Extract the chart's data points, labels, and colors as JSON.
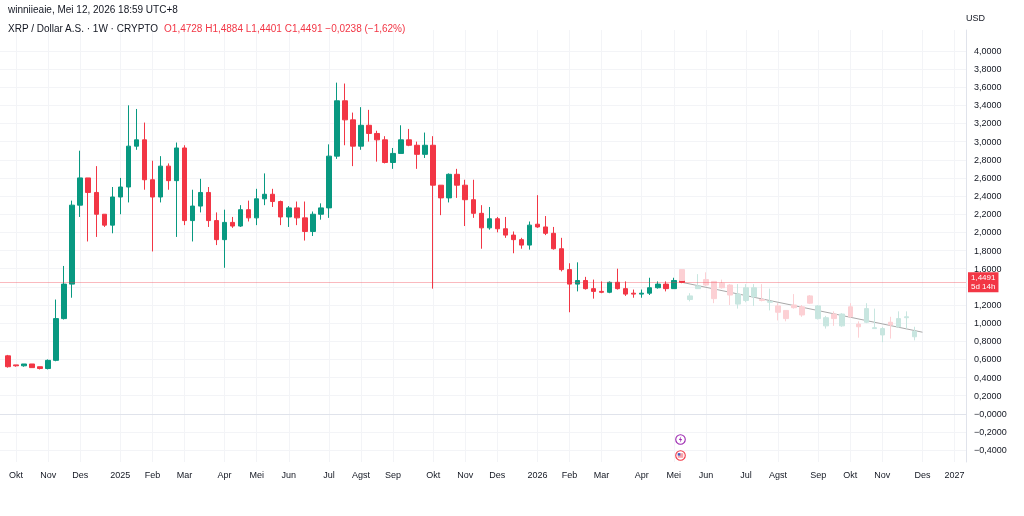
{
  "chart_data": {
    "type": "candlestick",
    "title": "XRP / Dollar A.S. · 1W · CRYPTO",
    "subtitle": "winniieaie, Mei 12, 2026 18:59 UTC+8",
    "ylabel": "USD",
    "annotations": [
      "O1,4728 H1,4884 L1,4401 C1,4491 −0,0238 (−1,62%)"
    ],
    "xlim": [
      "2024-09-23",
      "2027-01-14"
    ],
    "xticks": [
      {
        "value": "2024-10-07",
        "label": "Okt"
      },
      {
        "value": "2024-11-04",
        "label": "Nov"
      },
      {
        "value": "2024-12-02",
        "label": "Des"
      },
      {
        "value": "2025-01-06",
        "label": "2025"
      },
      {
        "value": "2025-02-03",
        "label": "Feb"
      },
      {
        "value": "2025-03-03",
        "label": "Mar"
      },
      {
        "value": "2025-04-07",
        "label": "Apr"
      },
      {
        "value": "2025-05-05",
        "label": "Mei"
      },
      {
        "value": "2025-06-02",
        "label": "Jun"
      },
      {
        "value": "2025-07-07",
        "label": "Jul"
      },
      {
        "value": "2025-08-04",
        "label": "Agst"
      },
      {
        "value": "2025-09-01",
        "label": "Sep"
      },
      {
        "value": "2025-10-06",
        "label": "Okt"
      },
      {
        "value": "2025-11-03",
        "label": "Nov"
      },
      {
        "value": "2025-12-01",
        "label": "Des"
      },
      {
        "value": "2026-01-05",
        "label": "2026"
      },
      {
        "value": "2026-02-02",
        "label": "Feb"
      },
      {
        "value": "2026-03-02",
        "label": "Mar"
      },
      {
        "value": "2026-04-06",
        "label": "Apr"
      },
      {
        "value": "2026-05-04",
        "label": "Mei"
      },
      {
        "value": "2026-06-01",
        "label": "Jun"
      },
      {
        "value": "2026-07-06",
        "label": "Jul"
      },
      {
        "value": "2026-08-03",
        "label": "Agst"
      },
      {
        "value": "2026-09-07",
        "label": "Sep"
      },
      {
        "value": "2026-10-05",
        "label": "Okt"
      },
      {
        "value": "2026-11-02",
        "label": "Nov"
      },
      {
        "value": "2026-12-07",
        "label": "Des"
      },
      {
        "value": "2027-01-04",
        "label": "2027"
      }
    ],
    "ylim": [
      -0.53,
      4.23
    ],
    "yticks": [
      {
        "value": -0.4,
        "label": "−0,4000"
      },
      {
        "value": -0.2,
        "label": "−0,2000"
      },
      {
        "value": 0,
        "label": "−0,0000"
      },
      {
        "value": 0.2,
        "label": "0,2000"
      },
      {
        "value": 0.4,
        "label": "0,4000"
      },
      {
        "value": 0.6,
        "label": "0,6000"
      },
      {
        "value": 0.8,
        "label": "0,8000"
      },
      {
        "value": 1,
        "label": "1,0000"
      },
      {
        "value": 1.2,
        "label": "1,2000"
      },
      {
        "value": 1.4,
        "label": null
      },
      {
        "value": 1.6,
        "label": "1,6000"
      },
      {
        "value": 1.8,
        "label": "1,8000"
      },
      {
        "value": 2,
        "label": "2,0000"
      },
      {
        "value": 2.2,
        "label": "2,2000"
      },
      {
        "value": 2.4,
        "label": "2,4000"
      },
      {
        "value": 2.6,
        "label": "2,6000"
      },
      {
        "value": 2.8,
        "label": "2,8000"
      },
      {
        "value": 3,
        "label": "3,0000"
      },
      {
        "value": 3.2,
        "label": "3,2000"
      },
      {
        "value": 3.4,
        "label": "3,4000"
      },
      {
        "value": 3.6,
        "label": "3,6000"
      },
      {
        "value": 3.8,
        "label": "3,8000"
      },
      {
        "value": 4,
        "label": "4,0000"
      }
    ],
    "grid": true,
    "ref_lines": [
      {
        "axis": "y",
        "value": 1.4491,
        "label": "1,4491\n5d 14h",
        "color": "#f23645"
      }
    ],
    "series": [
      {
        "x": [
          "2024-09-30",
          "2024-10-07",
          "2024-10-14",
          "2024-10-21",
          "2024-10-28",
          "2024-11-04",
          "2024-11-11",
          "2024-11-18",
          "2024-11-25",
          "2024-12-02",
          "2024-12-09",
          "2024-12-16",
          "2024-12-23",
          "2024-12-30",
          "2025-01-06",
          "2025-01-13",
          "2025-01-20",
          "2025-01-27",
          "2025-02-03",
          "2025-02-10",
          "2025-02-17",
          "2025-02-24",
          "2025-03-03",
          "2025-03-10",
          "2025-03-17",
          "2025-03-24",
          "2025-03-31",
          "2025-04-07",
          "2025-04-14",
          "2025-04-21",
          "2025-04-28",
          "2025-05-05",
          "2025-05-12",
          "2025-05-19",
          "2025-05-26",
          "2025-06-02",
          "2025-06-09",
          "2025-06-16",
          "2025-06-23",
          "2025-06-30",
          "2025-07-07",
          "2025-07-14",
          "2025-07-21",
          "2025-07-28",
          "2025-08-04",
          "2025-08-11",
          "2025-08-18",
          "2025-08-25",
          "2025-09-01",
          "2025-09-08",
          "2025-09-15",
          "2025-09-22",
          "2025-09-29",
          "2025-10-06",
          "2025-10-13",
          "2025-10-20",
          "2025-10-27",
          "2025-11-03",
          "2025-11-10",
          "2025-11-17",
          "2025-11-24",
          "2025-12-01",
          "2025-12-08",
          "2025-12-15",
          "2025-12-22",
          "2025-12-29",
          "2026-01-05",
          "2026-01-12",
          "2026-01-19",
          "2026-01-26",
          "2026-02-02",
          "2026-02-09",
          "2026-02-16",
          "2026-02-23",
          "2026-03-02",
          "2026-03-09",
          "2026-03-16",
          "2026-03-23",
          "2026-03-30",
          "2026-04-06",
          "2026-04-13",
          "2026-04-20",
          "2026-04-27",
          "2026-05-04",
          "2026-05-11"
        ],
        "ohlc": [
          [
            0.64,
            0.65,
            0.51,
            0.52
          ],
          [
            0.54,
            0.54,
            0.52,
            0.53
          ],
          [
            0.53,
            0.55,
            0.52,
            0.55
          ],
          [
            0.55,
            0.55,
            0.51,
            0.51
          ],
          [
            0.52,
            0.52,
            0.49,
            0.5
          ],
          [
            0.5,
            0.6,
            0.49,
            0.59
          ],
          [
            0.59,
            1.26,
            0.58,
            1.05
          ],
          [
            1.05,
            1.63,
            1.04,
            1.43
          ],
          [
            1.43,
            2.35,
            1.28,
            2.3
          ],
          [
            2.3,
            2.9,
            2.17,
            2.6
          ],
          [
            2.6,
            2.6,
            1.9,
            2.44
          ],
          [
            2.44,
            2.73,
            1.95,
            2.2
          ],
          [
            2.2,
            2.2,
            2.06,
            2.08
          ],
          [
            2.08,
            2.5,
            1.99,
            2.39
          ],
          [
            2.39,
            2.6,
            2.2,
            2.5
          ],
          [
            2.5,
            3.4,
            2.33,
            2.95
          ],
          [
            2.95,
            3.36,
            2.91,
            3.02
          ],
          [
            3.02,
            3.21,
            2.47,
            2.58
          ],
          [
            2.58,
            2.79,
            1.79,
            2.39
          ],
          [
            2.39,
            2.84,
            2.33,
            2.73
          ],
          [
            2.73,
            2.76,
            2.47,
            2.57
          ],
          [
            2.57,
            2.99,
            1.95,
            2.93
          ],
          [
            2.93,
            2.96,
            2.08,
            2.13
          ],
          [
            2.13,
            2.47,
            1.9,
            2.29
          ],
          [
            2.29,
            2.59,
            2.22,
            2.44
          ],
          [
            2.44,
            2.5,
            2.06,
            2.13
          ],
          [
            2.13,
            2.22,
            1.86,
            1.92
          ],
          [
            1.92,
            2.25,
            1.61,
            2.11
          ],
          [
            2.11,
            2.17,
            2.05,
            2.07
          ],
          [
            2.07,
            2.3,
            2.06,
            2.25
          ],
          [
            2.25,
            2.35,
            2.12,
            2.16
          ],
          [
            2.16,
            2.48,
            2.08,
            2.37
          ],
          [
            2.37,
            2.65,
            2.3,
            2.42
          ],
          [
            2.42,
            2.48,
            2.28,
            2.34
          ],
          [
            2.34,
            2.35,
            2.08,
            2.17
          ],
          [
            2.17,
            2.29,
            2.06,
            2.27
          ],
          [
            2.27,
            2.34,
            2.08,
            2.16
          ],
          [
            2.16,
            2.34,
            1.91,
            2.01
          ],
          [
            2.01,
            2.23,
            1.96,
            2.2
          ],
          [
            2.2,
            2.32,
            2.14,
            2.27
          ],
          [
            2.27,
            2.97,
            2.16,
            2.84
          ],
          [
            2.84,
            3.65,
            2.81,
            3.45
          ],
          [
            3.45,
            3.64,
            2.96,
            3.24
          ],
          [
            3.24,
            3.32,
            2.73,
            2.95
          ],
          [
            2.95,
            3.38,
            2.91,
            3.18
          ],
          [
            3.18,
            3.35,
            3.0,
            3.09
          ],
          [
            3.09,
            3.12,
            2.78,
            3.02
          ],
          [
            3.02,
            3.06,
            2.76,
            2.77
          ],
          [
            2.77,
            2.93,
            2.7,
            2.87
          ],
          [
            2.87,
            3.18,
            2.87,
            3.02
          ],
          [
            3.02,
            3.14,
            2.95,
            2.96
          ],
          [
            2.96,
            3.0,
            2.7,
            2.86
          ],
          [
            2.86,
            3.1,
            2.82,
            2.96
          ],
          [
            2.96,
            3.06,
            1.38,
            2.52
          ],
          [
            2.52,
            2.52,
            2.19,
            2.38
          ],
          [
            2.38,
            2.65,
            2.33,
            2.64
          ],
          [
            2.64,
            2.7,
            2.38,
            2.52
          ],
          [
            2.52,
            2.58,
            2.07,
            2.36
          ],
          [
            2.36,
            2.58,
            2.16,
            2.21
          ],
          [
            2.21,
            2.3,
            1.82,
            2.05
          ],
          [
            2.05,
            2.28,
            2.03,
            2.15
          ],
          [
            2.15,
            2.17,
            2.0,
            2.04
          ],
          [
            2.04,
            2.17,
            1.94,
            1.97
          ],
          [
            1.97,
            2.01,
            1.77,
            1.92
          ],
          [
            1.92,
            1.94,
            1.82,
            1.86
          ],
          [
            1.86,
            2.12,
            1.81,
            2.08
          ],
          [
            2.09,
            2.41,
            2.05,
            2.06
          ],
          [
            2.06,
            2.18,
            1.97,
            1.99
          ],
          [
            1.99,
            2.06,
            1.81,
            1.82
          ],
          [
            1.82,
            1.94,
            1.57,
            1.59
          ],
          [
            1.59,
            1.66,
            1.12,
            1.43
          ],
          [
            1.43,
            1.67,
            1.35,
            1.47
          ],
          [
            1.47,
            1.51,
            1.37,
            1.38
          ],
          [
            1.38,
            1.48,
            1.27,
            1.35
          ],
          [
            1.35,
            1.46,
            1.33,
            1.34
          ],
          [
            1.34,
            1.46,
            1.33,
            1.45
          ],
          [
            1.45,
            1.6,
            1.37,
            1.38
          ],
          [
            1.38,
            1.46,
            1.3,
            1.32
          ],
          [
            1.33,
            1.37,
            1.28,
            1.32
          ],
          [
            1.32,
            1.37,
            1.28,
            1.33
          ],
          [
            1.33,
            1.5,
            1.31,
            1.39
          ],
          [
            1.39,
            1.46,
            1.38,
            1.43
          ],
          [
            1.43,
            1.46,
            1.35,
            1.38
          ],
          [
            1.38,
            1.5,
            1.38,
            1.47
          ],
          [
            1.4728,
            1.4884,
            1.4401,
            1.4491
          ]
        ],
        "colors": [
          "#f23645",
          "#f23645",
          "#089981",
          "#f23645",
          "#f23645",
          "#089981",
          "#089981",
          "#089981",
          "#089981",
          "#089981",
          "#f23645",
          "#f23645",
          "#f23645",
          "#089981",
          "#089981",
          "#089981",
          "#089981",
          "#f23645",
          "#f23645",
          "#089981",
          "#f23645",
          "#089981",
          "#f23645",
          "#089981",
          "#089981",
          "#f23645",
          "#f23645",
          "#089981",
          "#f23645",
          "#089981",
          "#f23645",
          "#089981",
          "#089981",
          "#f23645",
          "#f23645",
          "#089981",
          "#f23645",
          "#f23645",
          "#089981",
          "#089981",
          "#089981",
          "#089981",
          "#f23645",
          "#f23645",
          "#089981",
          "#f23645",
          "#f23645",
          "#f23645",
          "#089981",
          "#089981",
          "#f23645",
          "#f23645",
          "#089981",
          "#f23645",
          "#f23645",
          "#089981",
          "#f23645",
          "#f23645",
          "#f23645",
          "#f23645",
          "#089981",
          "#f23645",
          "#f23645",
          "#f23645",
          "#f23645",
          "#089981",
          "#f23645",
          "#f23645",
          "#f23645",
          "#f23645",
          "#f23645",
          "#089981",
          "#f23645",
          "#f23645",
          "#f23645",
          "#089981",
          "#f23645",
          "#f23645",
          "#f23645",
          "#089981",
          "#089981",
          "#089981",
          "#f23645",
          "#089981",
          "#f23645"
        ]
      },
      {
        "x": [
          "2026-05-11",
          "2026-05-18",
          "2026-05-25",
          "2026-06-01",
          "2026-06-08",
          "2026-06-15",
          "2026-06-22",
          "2026-06-29",
          "2026-07-06",
          "2026-07-13",
          "2026-07-20",
          "2026-07-27",
          "2026-08-03",
          "2026-08-10",
          "2026-08-17",
          "2026-08-24",
          "2026-08-31",
          "2026-09-07",
          "2026-09-14",
          "2026-09-21",
          "2026-09-28",
          "2026-10-05",
          "2026-10-12",
          "2026-10-19",
          "2026-10-26",
          "2026-11-02",
          "2026-11-09",
          "2026-11-16",
          "2026-11-23",
          "2026-11-30"
        ],
        "ohlc": [
          [
            1.59,
            1.59,
            1.47,
            1.47
          ],
          [
            1.26,
            1.33,
            1.24,
            1.3
          ],
          [
            1.38,
            1.54,
            1.38,
            1.41
          ],
          [
            1.48,
            1.56,
            1.41,
            1.42
          ],
          [
            1.46,
            1.46,
            1.22,
            1.27
          ],
          [
            1.44,
            1.48,
            1.38,
            1.39
          ],
          [
            1.42,
            1.43,
            1.2,
            1.31
          ],
          [
            1.21,
            1.43,
            1.16,
            1.32
          ],
          [
            1.25,
            1.43,
            1.23,
            1.39
          ],
          [
            1.29,
            1.43,
            1.19,
            1.39
          ],
          [
            1.26,
            1.43,
            1.24,
            1.25
          ],
          [
            1.23,
            1.38,
            1.14,
            1.24
          ],
          [
            1.19,
            1.22,
            1.03,
            1.12
          ],
          [
            1.14,
            1.14,
            1.02,
            1.05
          ],
          [
            1.2,
            1.32,
            1.16,
            1.17
          ],
          [
            1.18,
            1.2,
            1.07,
            1.09
          ],
          [
            1.3,
            1.31,
            1.21,
            1.22
          ],
          [
            1.05,
            1.2,
            1.04,
            1.19
          ],
          [
            0.97,
            1.08,
            0.94,
            1.06
          ],
          [
            1.1,
            1.13,
            0.97,
            1.05
          ],
          [
            0.97,
            1.11,
            0.96,
            1.1
          ],
          [
            1.18,
            1.22,
            1.06,
            1.07
          ],
          [
            0.99,
            1.02,
            0.84,
            0.96
          ],
          [
            1.01,
            1.22,
            1.0,
            1.16
          ],
          [
            0.94,
            1.16,
            0.94,
            0.95
          ],
          [
            0.87,
            0.96,
            0.79,
            0.94
          ],
          [
            1.01,
            1.07,
            0.83,
            0.98
          ],
          [
            0.96,
            1.13,
            0.95,
            1.05
          ],
          [
            1.06,
            1.13,
            0.94,
            1.07
          ],
          [
            0.85,
            0.96,
            0.81,
            0.91
          ]
        ],
        "colors": [
          "#fcd0d4",
          "#c8e6e0",
          "#c8e6e0",
          "#fcd0d4",
          "#fcd0d4",
          "#fcd0d4",
          "#fcd0d4",
          "#c8e6e0",
          "#c8e6e0",
          "#c8e6e0",
          "#fcd0d4",
          "#c8e6e0",
          "#fcd0d4",
          "#fcd0d4",
          "#fcd0d4",
          "#fcd0d4",
          "#fcd0d4",
          "#c8e6e0",
          "#c8e6e0",
          "#fcd0d4",
          "#c8e6e0",
          "#fcd0d4",
          "#fcd0d4",
          "#c8e6e0",
          "#c8e6e0",
          "#c8e6e0",
          "#fcd0d4",
          "#c8e6e0",
          "#c8e6e0",
          "#c8e6e0"
        ]
      },
      {
        "type": "line",
        "x": [
          "2026-05-11",
          "2026-12-07"
        ],
        "values": [
          1.45,
          0.9
        ],
        "color": "#a8a8a8"
      }
    ]
  }
}
